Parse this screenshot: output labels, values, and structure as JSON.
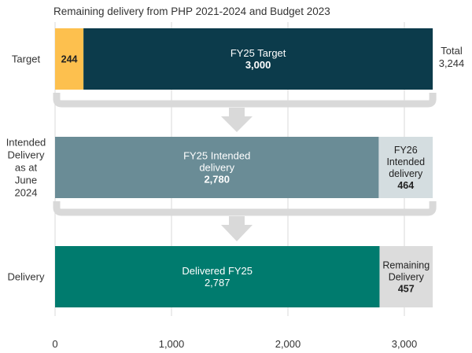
{
  "chart_data": {
    "type": "bar",
    "orientation": "horizontal-stacked",
    "title": "Remaining delivery from PHP 2021-2024 and Budget 2023",
    "categories": [
      "Target",
      "Intended Delivery as at June 2024",
      "Delivery"
    ],
    "category_lines": [
      [
        "Target"
      ],
      [
        "Intended",
        "Delivery",
        "as at",
        "June",
        "2024"
      ],
      [
        "Delivery"
      ]
    ],
    "xlim": [
      0,
      3250
    ],
    "x_ticks": [
      0,
      1000,
      2000,
      3000
    ],
    "x_tick_labels": [
      "0",
      "1,000",
      "2,000",
      "3,000"
    ],
    "grid": "vertical",
    "bars": [
      {
        "category": "Target",
        "segments": [
          {
            "value": 244,
            "color": "#FDC04E",
            "label_lines": [],
            "value_label": "244",
            "text_color": "#222222"
          },
          {
            "value": 3000,
            "color": "#0C3B4B",
            "label_lines": [
              "FY25 Target"
            ],
            "value_label": "3,000",
            "text_color": "#ffffff"
          }
        ],
        "total_lines": [
          "Total",
          "3,244"
        ]
      },
      {
        "category": "Intended Delivery as at June 2024",
        "segments": [
          {
            "value": 2780,
            "color": "#6A8C96",
            "label_lines": [
              "FY25 Intended",
              "delivery"
            ],
            "value_label": "2,780",
            "text_color": "#ffffff"
          },
          {
            "value": 464,
            "color": "#D4DDE0",
            "label_lines": [
              "FY26",
              "Intended",
              "delivery"
            ],
            "value_label": "464",
            "text_color": "#222222"
          }
        ]
      },
      {
        "category": "Delivery",
        "segments": [
          {
            "value": 2787,
            "color": "#007B6E",
            "label_lines": [
              "Delivered FY25",
              "2,787"
            ],
            "value_label": "",
            "text_color": "#ffffff"
          },
          {
            "value": 457,
            "color": "#DCDCDC",
            "label_lines": [
              "Remaining",
              "Delivery"
            ],
            "value_label": "457",
            "text_color": "#222222"
          }
        ]
      }
    ],
    "connector_color": "#D9D9D9"
  }
}
